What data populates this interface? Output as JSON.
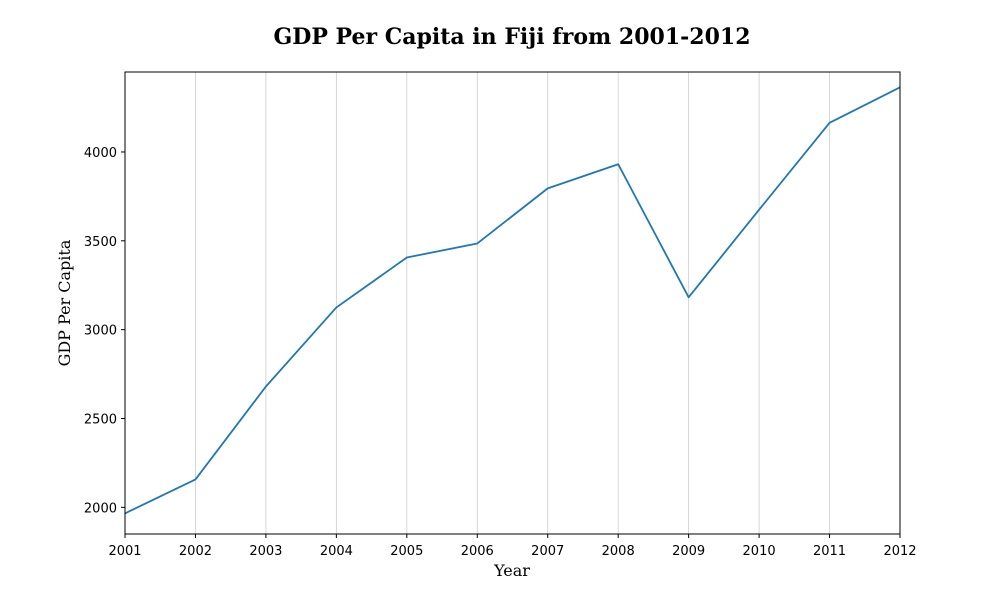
{
  "chart_data": {
    "type": "line",
    "title": "GDP Per Capita in Fiji from 2001-2012",
    "xlabel": "Year",
    "ylabel": "GDP Per Capita",
    "x": [
      2001,
      2002,
      2003,
      2004,
      2005,
      2006,
      2007,
      2008,
      2009,
      2010,
      2011,
      2012
    ],
    "series": [
      {
        "values": [
          1966,
          2157,
          2680,
          3125,
          3406,
          3485,
          3795,
          3931,
          3182,
          3675,
          4164,
          4364
        ],
        "color": "#1f77b4"
      }
    ],
    "xlim": [
      2001,
      2012
    ],
    "ylim": [
      1850,
      4450
    ],
    "xticks": [
      "2001",
      "2002",
      "2003",
      "2004",
      "2005",
      "2006",
      "2007",
      "2008",
      "2009",
      "2010",
      "2011",
      "2012"
    ],
    "yticks": [
      "2000",
      "2500",
      "3000",
      "3500",
      "4000"
    ],
    "grid": "vertical",
    "grid_color": "#cccccc"
  }
}
